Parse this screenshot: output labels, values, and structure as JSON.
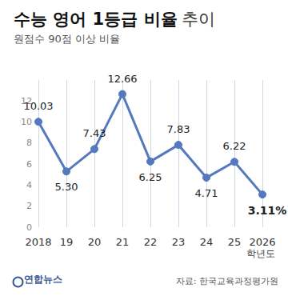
{
  "chart_data": {
    "type": "line",
    "title": "수능 영어 1등급 비율 추이",
    "subtitle": "원점수 90점 이상 비율",
    "xlabel": "학년도",
    "annotations": [
      "연합뉴스",
      "자료: 한국교육과정평가원"
    ],
    "categories": [
      "2018",
      "19",
      "20",
      "21",
      "22",
      "23",
      "24",
      "25",
      "2026"
    ],
    "values": [
      10.03,
      5.3,
      7.43,
      12.66,
      6.25,
      7.83,
      4.71,
      6.22,
      3.11
    ],
    "value_labels": [
      "10.03",
      "5.30",
      "7.43",
      "12.66",
      "6.25",
      "7.83",
      "4.71",
      "6.22",
      "3.11%"
    ],
    "color": "#5479be",
    "marker": "circle",
    "ylim": [
      0,
      14
    ],
    "yticks": [
      0,
      2,
      4,
      6,
      8,
      10,
      12
    ],
    "grid": true,
    "data_labels": true
  }
}
